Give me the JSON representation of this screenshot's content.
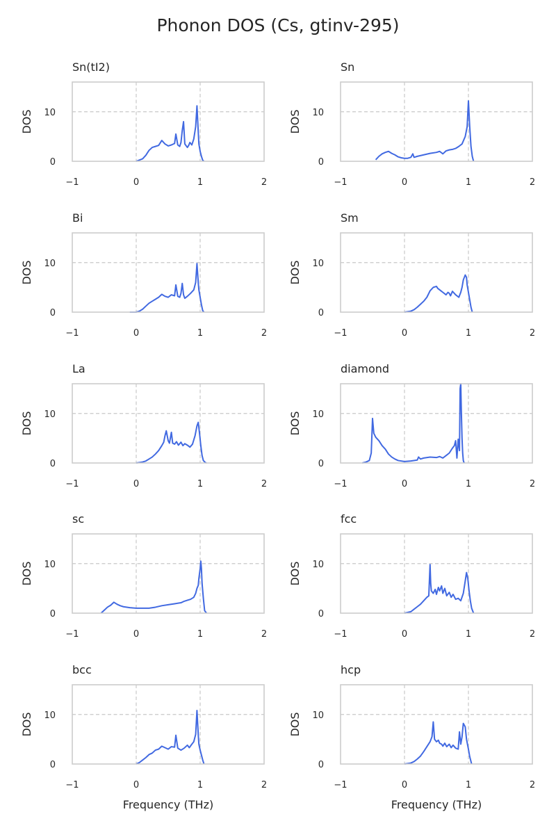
{
  "figure": {
    "title": "Phonon DOS (Cs, gtinv-295)",
    "line_color": "#4169e1",
    "grid_color": "#c8c8c8",
    "frame_color": "#cccccc"
  },
  "chart_data": [
    {
      "type": "line",
      "title": "Sn(tI2)",
      "xlabel": "",
      "ylabel": "DOS",
      "xlim": [
        -1,
        2
      ],
      "ylim": [
        0,
        16
      ],
      "xticks": [
        -1,
        0,
        1,
        2
      ],
      "yticks": [
        0,
        10
      ],
      "grid": "dashed at x=0, x=1, y=10",
      "x": [
        0,
        0.1,
        0.15,
        0.2,
        0.25,
        0.3,
        0.35,
        0.4,
        0.45,
        0.5,
        0.55,
        0.6,
        0.62,
        0.65,
        0.68,
        0.7,
        0.72,
        0.74,
        0.76,
        0.8,
        0.82,
        0.84,
        0.87,
        0.9,
        0.93,
        0.95,
        0.97,
        0.98,
        1.0,
        1.02,
        1.04,
        1.06
      ],
      "y": [
        0,
        0.5,
        1.2,
        2.2,
        2.8,
        3.0,
        3.2,
        4.2,
        3.5,
        3.1,
        3.3,
        3.6,
        5.5,
        3.3,
        3.0,
        3.8,
        6.2,
        8.0,
        3.5,
        2.8,
        3.2,
        3.8,
        3.3,
        4.5,
        7.0,
        11.2,
        6.0,
        3.5,
        2.0,
        1.0,
        0.2,
        0
      ]
    },
    {
      "type": "line",
      "title": "Sn",
      "xlabel": "",
      "ylabel": "DOS",
      "xlim": [
        -1,
        2
      ],
      "ylim": [
        0,
        16
      ],
      "xticks": [
        -1,
        0,
        1,
        2
      ],
      "yticks": [
        0,
        10
      ],
      "grid": "dashed at x=0, x=1, y=10",
      "x": [
        -0.45,
        -0.4,
        -0.35,
        -0.3,
        -0.25,
        -0.2,
        -0.15,
        -0.1,
        -0.05,
        0,
        0.05,
        0.1,
        0.13,
        0.15,
        0.2,
        0.3,
        0.4,
        0.5,
        0.55,
        0.6,
        0.65,
        0.7,
        0.75,
        0.8,
        0.85,
        0.9,
        0.95,
        0.98,
        1.0,
        1.02,
        1.04,
        1.06,
        1.08
      ],
      "y": [
        0.3,
        1.0,
        1.5,
        1.8,
        2.0,
        1.6,
        1.3,
        0.9,
        0.7,
        0.6,
        0.6,
        0.8,
        1.5,
        0.8,
        1.0,
        1.3,
        1.6,
        1.8,
        2.0,
        1.5,
        2.1,
        2.3,
        2.4,
        2.6,
        3.0,
        3.5,
        5.0,
        7.0,
        12.2,
        7.0,
        3.0,
        1.0,
        0
      ]
    },
    {
      "type": "line",
      "title": "Bi",
      "xlabel": "",
      "ylabel": "DOS",
      "xlim": [
        -1,
        2
      ],
      "ylim": [
        0,
        16
      ],
      "xticks": [
        -1,
        0,
        1,
        2
      ],
      "yticks": [
        0,
        10
      ],
      "grid": "dashed at x=0, x=1, y=10",
      "x": [
        -0.1,
        0,
        0.05,
        0.1,
        0.15,
        0.2,
        0.25,
        0.3,
        0.35,
        0.4,
        0.45,
        0.5,
        0.55,
        0.6,
        0.62,
        0.65,
        0.68,
        0.7,
        0.72,
        0.74,
        0.76,
        0.8,
        0.85,
        0.9,
        0.93,
        0.95,
        0.97,
        0.98,
        1.0,
        1.02,
        1.04,
        1.06
      ],
      "y": [
        0,
        0,
        0.2,
        0.6,
        1.2,
        1.8,
        2.2,
        2.6,
        3.0,
        3.6,
        3.2,
        3.0,
        3.5,
        3.3,
        5.5,
        3.2,
        3.0,
        3.8,
        5.8,
        3.5,
        2.8,
        3.2,
        3.8,
        4.5,
        6.0,
        9.8,
        6.0,
        4.5,
        3.0,
        1.5,
        0.3,
        0
      ]
    },
    {
      "type": "line",
      "title": "Sm",
      "xlabel": "",
      "ylabel": "DOS",
      "xlim": [
        -1,
        2
      ],
      "ylim": [
        0,
        16
      ],
      "xticks": [
        -1,
        0,
        1,
        2
      ],
      "yticks": [
        0,
        10
      ],
      "grid": "dashed at x=0, x=1, y=10",
      "x": [
        0,
        0.1,
        0.15,
        0.2,
        0.25,
        0.3,
        0.35,
        0.4,
        0.45,
        0.5,
        0.52,
        0.55,
        0.6,
        0.65,
        0.68,
        0.7,
        0.72,
        0.75,
        0.8,
        0.85,
        0.88,
        0.9,
        0.92,
        0.95,
        0.97,
        0.98,
        1.0,
        1.02,
        1.04,
        1.06
      ],
      "y": [
        0,
        0.2,
        0.5,
        1.0,
        1.6,
        2.2,
        3.0,
        4.3,
        5.0,
        5.2,
        4.8,
        4.5,
        4.0,
        3.5,
        4.0,
        3.8,
        3.3,
        4.2,
        3.5,
        3.0,
        4.0,
        5.0,
        6.5,
        7.5,
        7.0,
        5.5,
        4.0,
        2.5,
        1.0,
        0
      ]
    },
    {
      "type": "line",
      "title": "La",
      "xlabel": "",
      "ylabel": "DOS",
      "xlim": [
        -1,
        2
      ],
      "ylim": [
        0,
        16
      ],
      "xticks": [
        -1,
        0,
        1,
        2
      ],
      "yticks": [
        0,
        10
      ],
      "grid": "dashed at x=0, x=1, y=10",
      "x": [
        0,
        0.1,
        0.15,
        0.2,
        0.25,
        0.3,
        0.35,
        0.4,
        0.43,
        0.45,
        0.47,
        0.5,
        0.52,
        0.55,
        0.57,
        0.6,
        0.63,
        0.66,
        0.7,
        0.73,
        0.76,
        0.8,
        0.84,
        0.88,
        0.92,
        0.95,
        0.97,
        0.99,
        1.01,
        1.03,
        1.05,
        1.08,
        1.1
      ],
      "y": [
        0,
        0.2,
        0.4,
        0.8,
        1.2,
        1.8,
        2.5,
        3.5,
        4.2,
        5.5,
        6.5,
        4.5,
        4.0,
        6.2,
        4.0,
        3.8,
        4.3,
        3.6,
        4.2,
        3.5,
        3.9,
        3.6,
        3.2,
        3.8,
        5.5,
        7.5,
        8.2,
        6.0,
        3.5,
        1.5,
        0.5,
        0.1,
        0
      ]
    },
    {
      "type": "line",
      "title": "diamond",
      "xlabel": "",
      "ylabel": "DOS",
      "xlim": [
        -1,
        2
      ],
      "ylim": [
        0,
        16
      ],
      "xticks": [
        -1,
        0,
        1,
        2
      ],
      "yticks": [
        0,
        10
      ],
      "grid": "dashed at x=0, x=1, y=10",
      "x": [
        -0.66,
        -0.6,
        -0.55,
        -0.52,
        -0.5,
        -0.48,
        -0.45,
        -0.4,
        -0.35,
        -0.3,
        -0.25,
        -0.2,
        -0.15,
        -0.1,
        0,
        0.1,
        0.2,
        0.22,
        0.25,
        0.3,
        0.4,
        0.5,
        0.55,
        0.6,
        0.65,
        0.7,
        0.75,
        0.78,
        0.8,
        0.82,
        0.84,
        0.86,
        0.87,
        0.88,
        0.89,
        0.9,
        0.91,
        0.92,
        0.93,
        0.94
      ],
      "y": [
        0,
        0.2,
        0.5,
        2.0,
        9.0,
        6.0,
        5.2,
        4.5,
        3.5,
        2.8,
        1.8,
        1.2,
        0.8,
        0.5,
        0.3,
        0.4,
        0.6,
        1.2,
        0.8,
        1.0,
        1.2,
        1.1,
        1.3,
        1.0,
        1.5,
        2.0,
        3.0,
        3.5,
        4.5,
        1.0,
        4.8,
        2.5,
        15.0,
        16.0,
        10.0,
        5.0,
        2.0,
        0.5,
        0.1,
        0
      ]
    },
    {
      "type": "line",
      "title": "sc",
      "xlabel": "",
      "ylabel": "DOS",
      "xlim": [
        -1,
        2
      ],
      "ylim": [
        0,
        16
      ],
      "xticks": [
        -1,
        0,
        1,
        2
      ],
      "yticks": [
        0,
        10
      ],
      "grid": "dashed at x=0, x=1, y=10",
      "x": [
        -0.55,
        -0.5,
        -0.45,
        -0.4,
        -0.35,
        -0.3,
        -0.25,
        -0.2,
        -0.1,
        0,
        0.1,
        0.2,
        0.3,
        0.4,
        0.5,
        0.6,
        0.7,
        0.75,
        0.8,
        0.85,
        0.9,
        0.93,
        0.95,
        0.97,
        0.98,
        1.0,
        1.01,
        1.02,
        1.03,
        1.05,
        1.07,
        1.1
      ],
      "y": [
        0,
        0.6,
        1.2,
        1.6,
        2.2,
        1.8,
        1.5,
        1.3,
        1.1,
        1.0,
        1.0,
        1.0,
        1.2,
        1.5,
        1.7,
        1.9,
        2.1,
        2.4,
        2.6,
        2.8,
        3.2,
        4.0,
        5.0,
        5.6,
        7.0,
        9.0,
        10.5,
        9.0,
        6.0,
        3.0,
        0.5,
        0
      ]
    },
    {
      "type": "line",
      "title": "fcc",
      "xlabel": "",
      "ylabel": "DOS",
      "xlim": [
        -1,
        2
      ],
      "ylim": [
        0,
        16
      ],
      "xticks": [
        -1,
        0,
        1,
        2
      ],
      "yticks": [
        0,
        10
      ],
      "grid": "dashed at x=0, x=1, y=10",
      "x": [
        0,
        0.1,
        0.15,
        0.2,
        0.25,
        0.3,
        0.35,
        0.38,
        0.4,
        0.41,
        0.42,
        0.45,
        0.48,
        0.5,
        0.53,
        0.55,
        0.58,
        0.6,
        0.63,
        0.66,
        0.7,
        0.73,
        0.76,
        0.8,
        0.84,
        0.88,
        0.92,
        0.95,
        0.97,
        0.99,
        1.01,
        1.03,
        1.05,
        1.08
      ],
      "y": [
        0,
        0.3,
        0.8,
        1.3,
        1.8,
        2.5,
        3.2,
        3.5,
        9.8,
        6.0,
        4.5,
        4.0,
        4.8,
        3.8,
        5.2,
        4.5,
        5.5,
        4.0,
        5.0,
        3.5,
        4.2,
        3.2,
        3.8,
        2.8,
        3.0,
        2.5,
        4.0,
        6.5,
        8.2,
        7.0,
        4.5,
        2.5,
        1.0,
        0
      ]
    },
    {
      "type": "line",
      "title": "bcc",
      "xlabel": "Frequency (THz)",
      "ylabel": "DOS",
      "xlim": [
        -1,
        2
      ],
      "ylim": [
        0,
        16
      ],
      "xticks": [
        -1,
        0,
        1,
        2
      ],
      "yticks": [
        0,
        10
      ],
      "grid": "dashed at x=0, x=1, y=10",
      "x": [
        0,
        0.05,
        0.1,
        0.15,
        0.2,
        0.25,
        0.3,
        0.35,
        0.4,
        0.45,
        0.5,
        0.55,
        0.6,
        0.62,
        0.65,
        0.7,
        0.75,
        0.8,
        0.83,
        0.87,
        0.9,
        0.93,
        0.95,
        0.97,
        0.98,
        1.0,
        1.02,
        1.04,
        1.06
      ],
      "y": [
        0,
        0.3,
        0.8,
        1.3,
        1.9,
        2.2,
        2.8,
        3.0,
        3.6,
        3.3,
        3.0,
        3.5,
        3.4,
        5.8,
        3.2,
        2.8,
        3.2,
        3.8,
        3.3,
        4.0,
        4.5,
        6.0,
        10.8,
        6.0,
        4.0,
        2.8,
        1.8,
        0.8,
        0
      ]
    },
    {
      "type": "line",
      "title": "hcp",
      "xlabel": "Frequency (THz)",
      "ylabel": "DOS",
      "xlim": [
        -1,
        2
      ],
      "ylim": [
        0,
        16
      ],
      "xticks": [
        -1,
        0,
        1,
        2
      ],
      "yticks": [
        0,
        10
      ],
      "grid": "dashed at x=0, x=1, y=10",
      "x": [
        0,
        0.1,
        0.15,
        0.2,
        0.25,
        0.3,
        0.35,
        0.4,
        0.43,
        0.45,
        0.47,
        0.5,
        0.53,
        0.55,
        0.58,
        0.6,
        0.63,
        0.66,
        0.7,
        0.73,
        0.76,
        0.8,
        0.84,
        0.86,
        0.88,
        0.9,
        0.92,
        0.95,
        0.97,
        1.0,
        1.02,
        1.05
      ],
      "y": [
        0,
        0.2,
        0.5,
        1.0,
        1.6,
        2.5,
        3.5,
        4.5,
        5.5,
        8.5,
        5.0,
        4.5,
        4.8,
        4.2,
        4.0,
        3.6,
        4.2,
        3.5,
        4.0,
        3.3,
        3.8,
        3.2,
        3.0,
        6.5,
        4.0,
        5.5,
        8.2,
        7.5,
        5.0,
        3.0,
        1.5,
        0
      ]
    }
  ]
}
